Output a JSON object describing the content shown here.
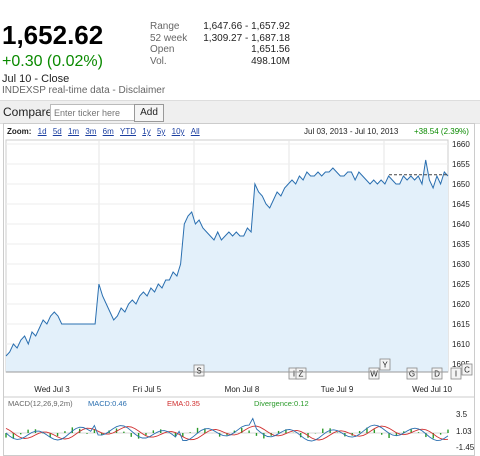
{
  "quote": {
    "price": "1,652.62",
    "change": "+0.30 (0.02%)",
    "close_label": "Jul 10 - Close",
    "source": "INDEXSP real-time data - Disclaimer"
  },
  "stats": [
    {
      "label": "Range",
      "value": "1,647.66 - 1,657.92"
    },
    {
      "label": "52 week",
      "value": "1,309.27 - 1,687.18"
    },
    {
      "label": "Open",
      "value": "1,651.56"
    },
    {
      "label": "Vol.",
      "value": "498.10M"
    }
  ],
  "compare": {
    "label": "Compare:",
    "placeholder": "Enter ticker here",
    "add_label": "Add"
  },
  "zoom": {
    "label": "Zoom:",
    "options": [
      "1d",
      "5d",
      "1m",
      "3m",
      "6m",
      "YTD",
      "1y",
      "5y",
      "10y",
      "All"
    ]
  },
  "date_range": "Jul 03, 2013 - Jul 10, 2013",
  "range_change": "+38.54 (2.39%)",
  "news_flags": [
    "S",
    "I",
    "Z",
    "W",
    "Y",
    "G",
    "D",
    "I",
    "C"
  ],
  "macd": {
    "title": "MACD(12,26,9,2m)",
    "macd_label": "MACD:0.46",
    "ema_label": "EMA:0.35",
    "div_label": "Divergence:0.12",
    "ticks": [
      "3.5",
      "1.03",
      "-1.45"
    ]
  },
  "colors": {
    "up": "#0a8a00",
    "line": "#2a6fb0",
    "fill": "#e3f0fa",
    "macd": "#2a6fb0",
    "ema": "#d03030",
    "div": "#2a9a2a"
  },
  "chart_data": {
    "type": "area",
    "title": "",
    "x_ticks": [
      "Wed Jul 3",
      "Fri Jul 5",
      "Mon Jul 8",
      "Tue Jul 9",
      "Wed Jul 10"
    ],
    "y_ticks": [
      1660,
      1655,
      1650,
      1645,
      1640,
      1635,
      1630,
      1625,
      1620,
      1615,
      1610,
      1605
    ],
    "ylim": [
      1603,
      1661
    ],
    "previous_close": 1652.3,
    "series": [
      {
        "x": [
          0,
          1,
          2,
          3,
          4,
          5,
          6,
          7,
          8,
          9,
          10,
          11,
          12,
          13,
          14,
          15,
          16,
          17,
          18,
          19,
          20,
          21,
          22,
          23,
          24,
          25,
          26,
          27,
          28,
          29,
          30,
          31,
          32,
          33,
          34,
          35,
          36,
          37,
          38,
          39,
          40,
          41,
          42,
          43,
          44,
          45,
          46,
          47,
          48,
          49,
          50,
          51,
          52,
          53,
          54,
          55,
          56,
          57,
          58,
          59,
          60,
          61,
          62,
          63,
          64,
          65,
          66,
          67,
          68,
          69,
          70,
          71,
          72,
          73,
          74,
          75,
          76,
          77,
          78,
          79,
          80,
          81,
          82,
          83,
          84,
          85,
          86,
          87,
          88,
          89,
          90,
          91,
          92,
          93,
          94,
          95,
          96,
          97,
          98,
          99,
          100,
          101,
          102,
          103,
          104,
          105,
          106,
          107,
          108,
          109,
          110,
          111,
          112,
          113,
          114,
          115,
          116,
          117,
          118,
          119
        ],
        "values": [
          1607,
          1608,
          1610,
          1609,
          1611,
          1612,
          1610,
          1613,
          1612,
          1614,
          1616,
          1615,
          1617,
          1618,
          1617,
          1615,
          1615,
          1615,
          1615,
          1615,
          1615,
          1615,
          1615,
          1615,
          1615,
          1625,
          1622,
          1620,
          1618,
          1616,
          1617,
          1619,
          1618,
          1620,
          1621,
          1620,
          1622,
          1623,
          1622,
          1624,
          1623,
          1625,
          1624,
          1626,
          1626,
          1628,
          1627,
          1630,
          1640,
          1642,
          1643,
          1640,
          1641,
          1639,
          1638,
          1637,
          1636,
          1638,
          1636,
          1637,
          1638,
          1637,
          1638,
          1637,
          1637,
          1639,
          1638,
          1650,
          1648,
          1647,
          1645,
          1644,
          1646,
          1648,
          1647,
          1649,
          1650,
          1651,
          1650,
          1652,
          1651,
          1653,
          1652,
          1652,
          1653,
          1652,
          1653,
          1653,
          1654,
          1653,
          1652,
          1652,
          1653,
          1653,
          1651,
          1653,
          1652,
          1651,
          1650,
          1651,
          1650,
          1651,
          1650,
          1652,
          1651,
          1650,
          1650,
          1652,
          1651,
          1652,
          1651,
          1652,
          1650,
          1656,
          1651,
          1649,
          1652,
          1650,
          1653,
          1652
        ]
      }
    ]
  }
}
